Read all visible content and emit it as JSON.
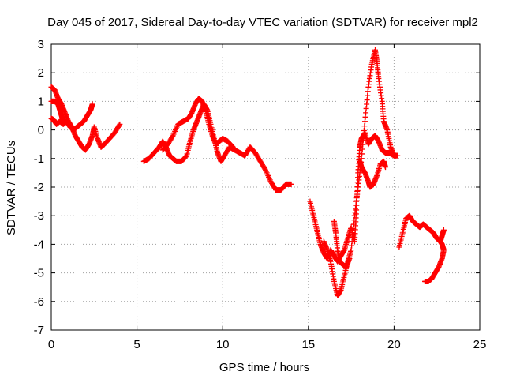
{
  "chart_data": {
    "type": "scatter",
    "title": "Day 045 of 2017, Sidereal Day-to-day VTEC variation (SDTVAR) for receiver mpl2",
    "xlabel": "GPS time / hours",
    "ylabel": "SDTVAR / TECUs",
    "xlim": [
      0,
      25
    ],
    "ylim": [
      -7,
      3
    ],
    "xticks": [
      0,
      5,
      10,
      15,
      20,
      25
    ],
    "yticks": [
      -7,
      -6,
      -5,
      -4,
      -3,
      -2,
      -1,
      0,
      1,
      2,
      3
    ],
    "grid": true,
    "marker": "+",
    "color": "#ff0000",
    "series": [
      {
        "points": [
          [
            0.0,
            1.5
          ],
          [
            0.2,
            1.4
          ],
          [
            0.4,
            1.1
          ],
          [
            0.6,
            0.9
          ],
          [
            0.8,
            0.6
          ],
          [
            1.0,
            0.3
          ],
          [
            1.2,
            0.1
          ],
          [
            1.4,
            -0.2
          ],
          [
            1.6,
            -0.4
          ],
          [
            1.8,
            -0.6
          ],
          [
            2.0,
            -0.7
          ],
          [
            2.2,
            -0.5
          ],
          [
            2.4,
            -0.2
          ],
          [
            2.5,
            0.1
          ],
          [
            2.7,
            -0.3
          ],
          [
            2.9,
            -0.6
          ],
          [
            3.1,
            -0.5
          ],
          [
            3.4,
            -0.3
          ],
          [
            3.7,
            -0.1
          ],
          [
            4.0,
            0.2
          ]
        ]
      },
      {
        "points": [
          [
            0.0,
            0.4
          ],
          [
            0.15,
            0.35
          ],
          [
            0.3,
            0.2
          ],
          [
            0.5,
            0.3
          ],
          [
            0.7,
            0.2
          ],
          [
            0.9,
            0.3
          ],
          [
            1.1,
            0.1
          ],
          [
            1.3,
            0.0
          ],
          [
            1.5,
            0.1
          ],
          [
            1.7,
            0.2
          ],
          [
            1.9,
            0.3
          ],
          [
            2.1,
            0.5
          ],
          [
            2.3,
            0.7
          ],
          [
            2.4,
            0.9
          ]
        ]
      },
      {
        "points": [
          [
            0.0,
            1.0
          ],
          [
            0.2,
            1.0
          ],
          [
            0.4,
            0.9
          ],
          [
            0.5,
            0.7
          ],
          [
            0.6,
            0.5
          ],
          [
            0.7,
            0.3
          ]
        ]
      },
      {
        "points": [
          [
            5.4,
            -1.1
          ],
          [
            5.7,
            -1.0
          ],
          [
            6.0,
            -0.8
          ],
          [
            6.3,
            -0.6
          ],
          [
            6.5,
            -0.4
          ],
          [
            6.7,
            -0.6
          ],
          [
            6.9,
            -0.9
          ],
          [
            7.1,
            -1.0
          ],
          [
            7.3,
            -1.1
          ],
          [
            7.6,
            -1.1
          ],
          [
            7.9,
            -0.9
          ],
          [
            8.1,
            -0.4
          ],
          [
            8.3,
            0.0
          ],
          [
            8.5,
            0.3
          ],
          [
            8.7,
            0.6
          ],
          [
            8.9,
            0.9
          ],
          [
            9.1,
            0.7
          ],
          [
            9.3,
            0.2
          ],
          [
            9.5,
            -0.3
          ],
          [
            9.7,
            -0.8
          ],
          [
            9.9,
            -1.1
          ],
          [
            10.1,
            -0.9
          ],
          [
            10.4,
            -0.6
          ],
          [
            10.7,
            -0.7
          ],
          [
            11.0,
            -0.8
          ],
          [
            11.3,
            -0.9
          ],
          [
            11.6,
            -0.6
          ],
          [
            11.9,
            -0.8
          ],
          [
            12.2,
            -1.1
          ],
          [
            12.5,
            -1.4
          ],
          [
            12.8,
            -1.8
          ],
          [
            13.1,
            -2.1
          ],
          [
            13.4,
            -2.1
          ],
          [
            13.7,
            -1.9
          ],
          [
            14.0,
            -1.9
          ]
        ]
      },
      {
        "points": [
          [
            6.5,
            -0.7
          ],
          [
            6.8,
            -0.5
          ],
          [
            7.1,
            -0.2
          ],
          [
            7.4,
            0.2
          ],
          [
            7.7,
            0.3
          ],
          [
            8.0,
            0.4
          ],
          [
            8.2,
            0.6
          ],
          [
            8.4,
            0.9
          ],
          [
            8.6,
            1.1
          ],
          [
            8.8,
            1.0
          ],
          [
            9.0,
            0.7
          ],
          [
            9.2,
            0.2
          ],
          [
            9.4,
            -0.2
          ],
          [
            9.6,
            -0.5
          ],
          [
            9.8,
            -0.4
          ],
          [
            10.0,
            -0.3
          ],
          [
            10.3,
            -0.4
          ],
          [
            10.6,
            -0.6
          ]
        ]
      },
      {
        "points": [
          [
            15.1,
            -2.5
          ],
          [
            15.3,
            -3.0
          ],
          [
            15.5,
            -3.5
          ],
          [
            15.7,
            -4.0
          ],
          [
            15.9,
            -4.3
          ],
          [
            16.1,
            -4.5
          ],
          [
            16.3,
            -4.2
          ],
          [
            16.5,
            -4.4
          ],
          [
            16.7,
            -4.6
          ],
          [
            16.9,
            -4.4
          ],
          [
            17.1,
            -4.2
          ],
          [
            17.3,
            -3.8
          ],
          [
            17.5,
            -3.4
          ],
          [
            17.7,
            -3.9
          ],
          [
            17.8,
            -2.8
          ],
          [
            17.9,
            -1.5
          ],
          [
            18.0,
            -0.6
          ],
          [
            18.1,
            -0.3
          ],
          [
            18.3,
            -0.1
          ],
          [
            18.5,
            -0.5
          ],
          [
            18.7,
            -0.3
          ],
          [
            18.9,
            -0.2
          ],
          [
            19.1,
            -0.4
          ],
          [
            19.3,
            -0.7
          ],
          [
            19.5,
            -0.8
          ],
          [
            19.7,
            -0.8
          ],
          [
            20.0,
            -0.9
          ],
          [
            20.2,
            -0.9
          ]
        ]
      },
      {
        "points": [
          [
            15.9,
            -3.9
          ],
          [
            16.1,
            -4.2
          ],
          [
            16.3,
            -4.6
          ],
          [
            16.5,
            -5.3
          ],
          [
            16.7,
            -5.8
          ],
          [
            16.9,
            -5.6
          ],
          [
            17.1,
            -5.1
          ],
          [
            17.3,
            -4.6
          ],
          [
            17.5,
            -4.2
          ],
          [
            17.7,
            -3.0
          ],
          [
            17.9,
            -2.0
          ],
          [
            18.1,
            -1.0
          ],
          [
            18.3,
            0.3
          ],
          [
            18.5,
            1.5
          ],
          [
            18.7,
            2.3
          ],
          [
            18.9,
            2.8
          ],
          [
            19.0,
            2.4
          ],
          [
            19.1,
            1.8
          ],
          [
            19.3,
            1.0
          ],
          [
            19.4,
            0.3
          ],
          [
            19.6,
            0.0
          ],
          [
            19.8,
            -0.6
          ],
          [
            20.0,
            -0.9
          ]
        ]
      },
      {
        "points": [
          [
            18.0,
            -1.1
          ],
          [
            18.1,
            -1.3
          ],
          [
            18.3,
            -1.5
          ],
          [
            18.5,
            -1.8
          ],
          [
            18.6,
            -2.0
          ],
          [
            18.8,
            -1.9
          ],
          [
            19.0,
            -1.6
          ],
          [
            19.2,
            -1.2
          ],
          [
            19.4,
            -1.1
          ],
          [
            19.5,
            -1.3
          ]
        ]
      },
      {
        "points": [
          [
            16.5,
            -3.2
          ],
          [
            16.6,
            -3.6
          ],
          [
            16.7,
            -4.2
          ],
          [
            16.8,
            -4.6
          ],
          [
            17.0,
            -4.7
          ],
          [
            17.2,
            -4.8
          ],
          [
            17.4,
            -4.5
          ]
        ]
      },
      {
        "points": [
          [
            20.3,
            -4.1
          ],
          [
            20.5,
            -3.6
          ],
          [
            20.7,
            -3.1
          ],
          [
            20.9,
            -3.0
          ],
          [
            21.1,
            -3.2
          ],
          [
            21.3,
            -3.3
          ],
          [
            21.5,
            -3.4
          ],
          [
            21.7,
            -3.3
          ],
          [
            21.9,
            -3.4
          ],
          [
            22.1,
            -3.5
          ],
          [
            22.3,
            -3.6
          ],
          [
            22.5,
            -3.8
          ],
          [
            22.7,
            -3.9
          ],
          [
            22.8,
            -3.7
          ],
          [
            22.9,
            -3.5
          ]
        ]
      },
      {
        "points": [
          [
            21.8,
            -5.3
          ],
          [
            22.0,
            -5.3
          ],
          [
            22.2,
            -5.2
          ],
          [
            22.4,
            -5.0
          ],
          [
            22.6,
            -4.8
          ],
          [
            22.8,
            -4.5
          ],
          [
            22.9,
            -4.2
          ],
          [
            22.8,
            -4.0
          ],
          [
            22.7,
            -3.9
          ]
        ]
      }
    ]
  }
}
